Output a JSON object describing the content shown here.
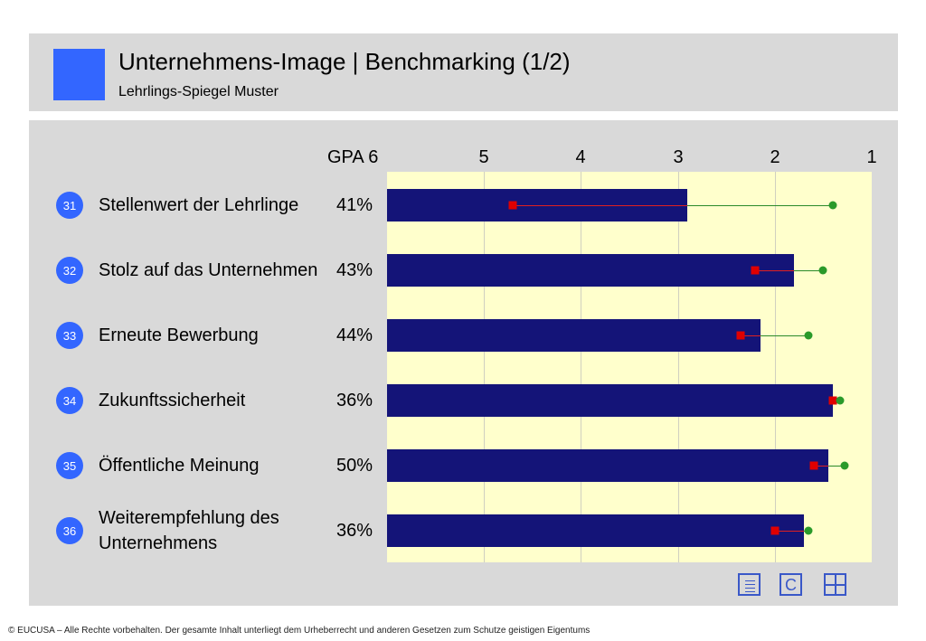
{
  "header": {
    "title": "Unternehmens-Image | Benchmarking (1/2)",
    "subtitle": "Lehrlings-Spiegel Muster"
  },
  "colors": {
    "brand": "#3366ff",
    "bar": "#141478",
    "plot_background": "#ffffcc",
    "panel": "#d9d9d9",
    "marker_red": "#e00000",
    "marker_green": "#2a9a2a"
  },
  "chart_data": {
    "type": "bar",
    "orientation": "horizontal",
    "axis_top_labels": [
      "GPA 6",
      "5",
      "4",
      "3",
      "2",
      "1"
    ],
    "xlim": [
      6,
      1
    ],
    "grid": true,
    "categories": [
      {
        "num": "31",
        "label": "Stellenwert der Lehrlinge",
        "pct": "41%"
      },
      {
        "num": "32",
        "label": "Stolz auf das Unternehmen",
        "pct": "43%"
      },
      {
        "num": "33",
        "label": "Erneute Bewerbung",
        "pct": "44%"
      },
      {
        "num": "34",
        "label": "Zukunftssicherheit",
        "pct": "36%"
      },
      {
        "num": "35",
        "label": "Öffentliche Meinung",
        "pct": "50%"
      },
      {
        "num": "36",
        "label": "Weiterempfehlung des Unternehmens",
        "pct": "36%"
      }
    ],
    "series": [
      {
        "values": [
          2.9,
          1.8,
          2.15,
          1.4,
          1.45,
          1.7
        ]
      },
      {
        "marker": "red-square",
        "values": [
          4.7,
          2.2,
          2.35,
          1.4,
          1.6,
          2.0
        ]
      },
      {
        "marker": "green-dot",
        "values": [
          1.4,
          1.5,
          1.65,
          1.33,
          1.28,
          1.65
        ]
      }
    ]
  },
  "nav_icons": [
    {
      "name": "list-icon"
    },
    {
      "name": "letter-c-icon",
      "glyph": "C"
    },
    {
      "name": "grid-icon"
    }
  ],
  "footer": {
    "text": "© EUCUSA – Alle Rechte vorbehalten. Der gesamte Inhalt unterliegt dem Urheberrecht und anderen Gesetzen zum Schutze geistigen Eigentums"
  }
}
